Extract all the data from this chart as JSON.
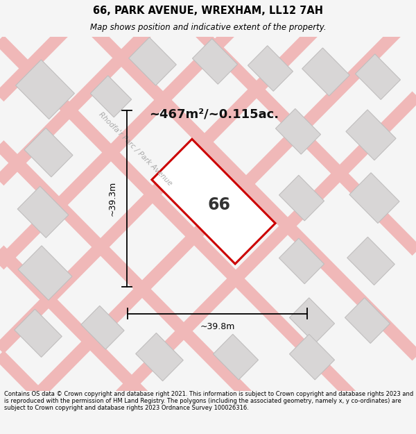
{
  "title": "66, PARK AVENUE, WREXHAM, LL12 7AH",
  "subtitle": "Map shows position and indicative extent of the property.",
  "area_text": "~467m²/~0.115ac.",
  "dim_width": "~39.8m",
  "dim_height": "~39.3m",
  "number_label": "66",
  "road_label": "Rhodfa'r Parc / Park Avenue",
  "footer": "Contains OS data © Crown copyright and database right 2021. This information is subject to Crown copyright and database rights 2023 and is reproduced with the permission of HM Land Registry. The polygons (including the associated geometry, namely x, y co-ordinates) are subject to Crown copyright and database rights 2023 Ordnance Survey 100026316.",
  "bg_color": "#f5f5f5",
  "map_bg": "#eeecec",
  "plot_color": "#ffffff",
  "plot_edge_color": "#cc0000",
  "road_color": "#f0b8b8",
  "building_color": "#d8d6d6",
  "building_edge": "#c0bebe",
  "dimension_color": "#000000",
  "road_label_color": "#aaaaaa",
  "number_color": "#333333",
  "area_color": "#111111"
}
